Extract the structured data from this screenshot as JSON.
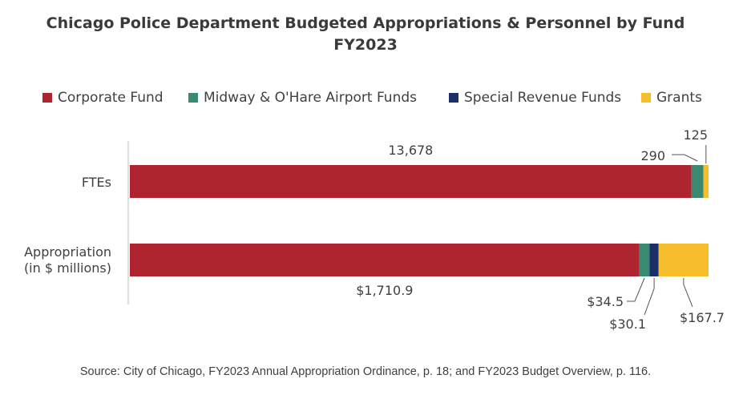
{
  "chart_data": {
    "type": "bar",
    "orientation": "horizontal",
    "stacked": true,
    "title": "Chicago Police Department Budgeted Appropriations & Personnel by Fund",
    "subtitle": "FY2023",
    "categories": [
      "FTEs",
      "Appropriation (in $ millions)"
    ],
    "category_lines": [
      [
        "FTEs"
      ],
      [
        "Appropriation",
        "(in $ millions)"
      ]
    ],
    "series": [
      {
        "name": "Corporate Fund",
        "color": "#AE2530",
        "values": [
          13678,
          1710.9
        ],
        "labels": [
          "13,678",
          "$1,710.9"
        ]
      },
      {
        "name": "Midway & O'Hare Airport Funds",
        "color": "#3A8A73",
        "values": [
          290,
          34.5
        ],
        "labels": [
          "290",
          "$34.5"
        ]
      },
      {
        "name": "Special Revenue Funds",
        "color": "#1B2F6B",
        "values": [
          0,
          30.1
        ],
        "labels": [
          "",
          "$30.1"
        ]
      },
      {
        "name": "Grants",
        "color": "#F6BE2A",
        "values": [
          125,
          167.7
        ],
        "labels": [
          "125",
          "$167.7"
        ]
      }
    ],
    "normalized": true,
    "grid": false,
    "legend_position": "top"
  },
  "source": "Source: City of Chicago, FY2023 Annual Appropriation Ordinance, p. 18; and FY2023 Budget Overview, p. 116."
}
